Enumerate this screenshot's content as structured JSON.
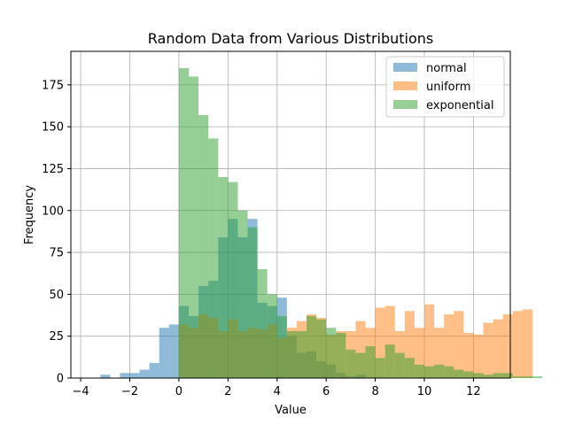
{
  "chart_data": {
    "type": "histogram",
    "title": "Random Data from Various Distributions",
    "xlabel": "Value",
    "ylabel": "Frequency",
    "xlim": [
      -4.4,
      13.5
    ],
    "ylim": [
      0,
      195
    ],
    "xticks": [
      -4,
      -2,
      0,
      2,
      4,
      6,
      8,
      10,
      12
    ],
    "yticks": [
      0,
      25,
      50,
      75,
      100,
      125,
      150,
      175
    ],
    "grid": true,
    "legend_position": "top-right",
    "bin_width": 0.4,
    "series": [
      {
        "name": "normal",
        "color": "#1f77b4",
        "bin_start": -3.6,
        "counts": [
          0,
          2,
          0,
          3,
          3,
          5,
          9,
          30,
          32,
          43,
          37,
          55,
          58,
          84,
          95,
          84,
          95,
          45,
          43,
          48,
          25,
          15,
          16,
          10,
          8,
          3,
          1,
          2
        ]
      },
      {
        "name": "uniform",
        "color": "#ff7f0e",
        "bin_start": 0.0,
        "counts": [
          32,
          30,
          38,
          36,
          28,
          35,
          28,
          30,
          29,
          32,
          24,
          30,
          34,
          38,
          36,
          26,
          28,
          28,
          34,
          30,
          42,
          43,
          28,
          40,
          30,
          44,
          30,
          38,
          40,
          27,
          26,
          33,
          35,
          38,
          40,
          41
        ]
      },
      {
        "name": "exponential",
        "color": "#2ca02c",
        "bin_start": 0.0,
        "counts": [
          185,
          180,
          157,
          143,
          120,
          117,
          100,
          90,
          65,
          50,
          37,
          28,
          28,
          37,
          35,
          30,
          27,
          17,
          15,
          19,
          12,
          20,
          15,
          12,
          8,
          7,
          8,
          7,
          5,
          4,
          3,
          2,
          3,
          3,
          1,
          1,
          1,
          0,
          0,
          0,
          0,
          2
        ]
      }
    ]
  }
}
